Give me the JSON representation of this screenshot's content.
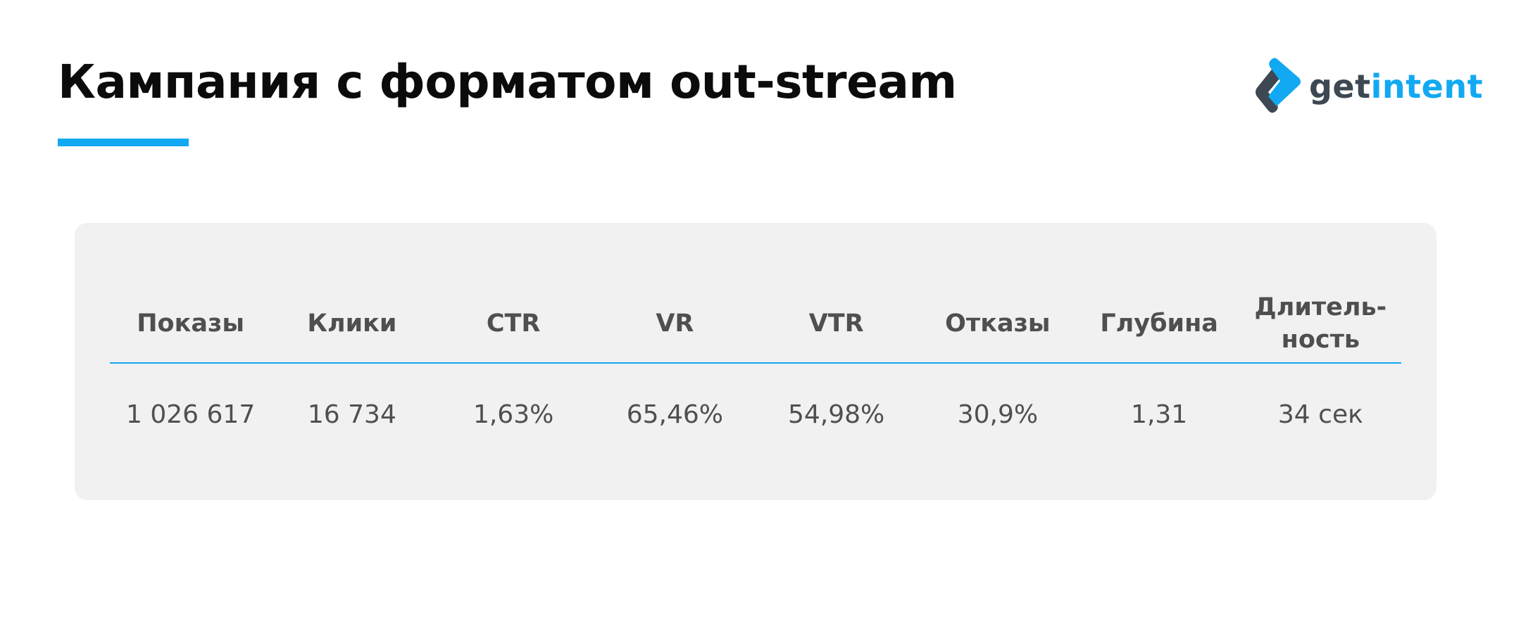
{
  "slide": {
    "title": "Кампания с форматом out-stream",
    "accent_color": "#12a9f2"
  },
  "logo": {
    "icon": "getintent-logo-icon",
    "text_get": "get",
    "text_intent": "intent",
    "text_color_dark": "#3d4852",
    "text_color_accent": "#12a9f2"
  },
  "table": {
    "headers": [
      {
        "line1": "Показы",
        "line2": ""
      },
      {
        "line1": "Клики",
        "line2": ""
      },
      {
        "line1": "CTR",
        "line2": ""
      },
      {
        "line1": "VR",
        "line2": ""
      },
      {
        "line1": "VTR",
        "line2": ""
      },
      {
        "line1": "Отказы",
        "line2": ""
      },
      {
        "line1": "Глубина",
        "line2": ""
      },
      {
        "line1": "Длитель-",
        "line2": "ность"
      }
    ],
    "values": [
      "1 026 617",
      "16 734",
      "1,63%",
      "65,46%",
      "54,98%",
      "30,9%",
      "1,31",
      "34 сек"
    ]
  }
}
